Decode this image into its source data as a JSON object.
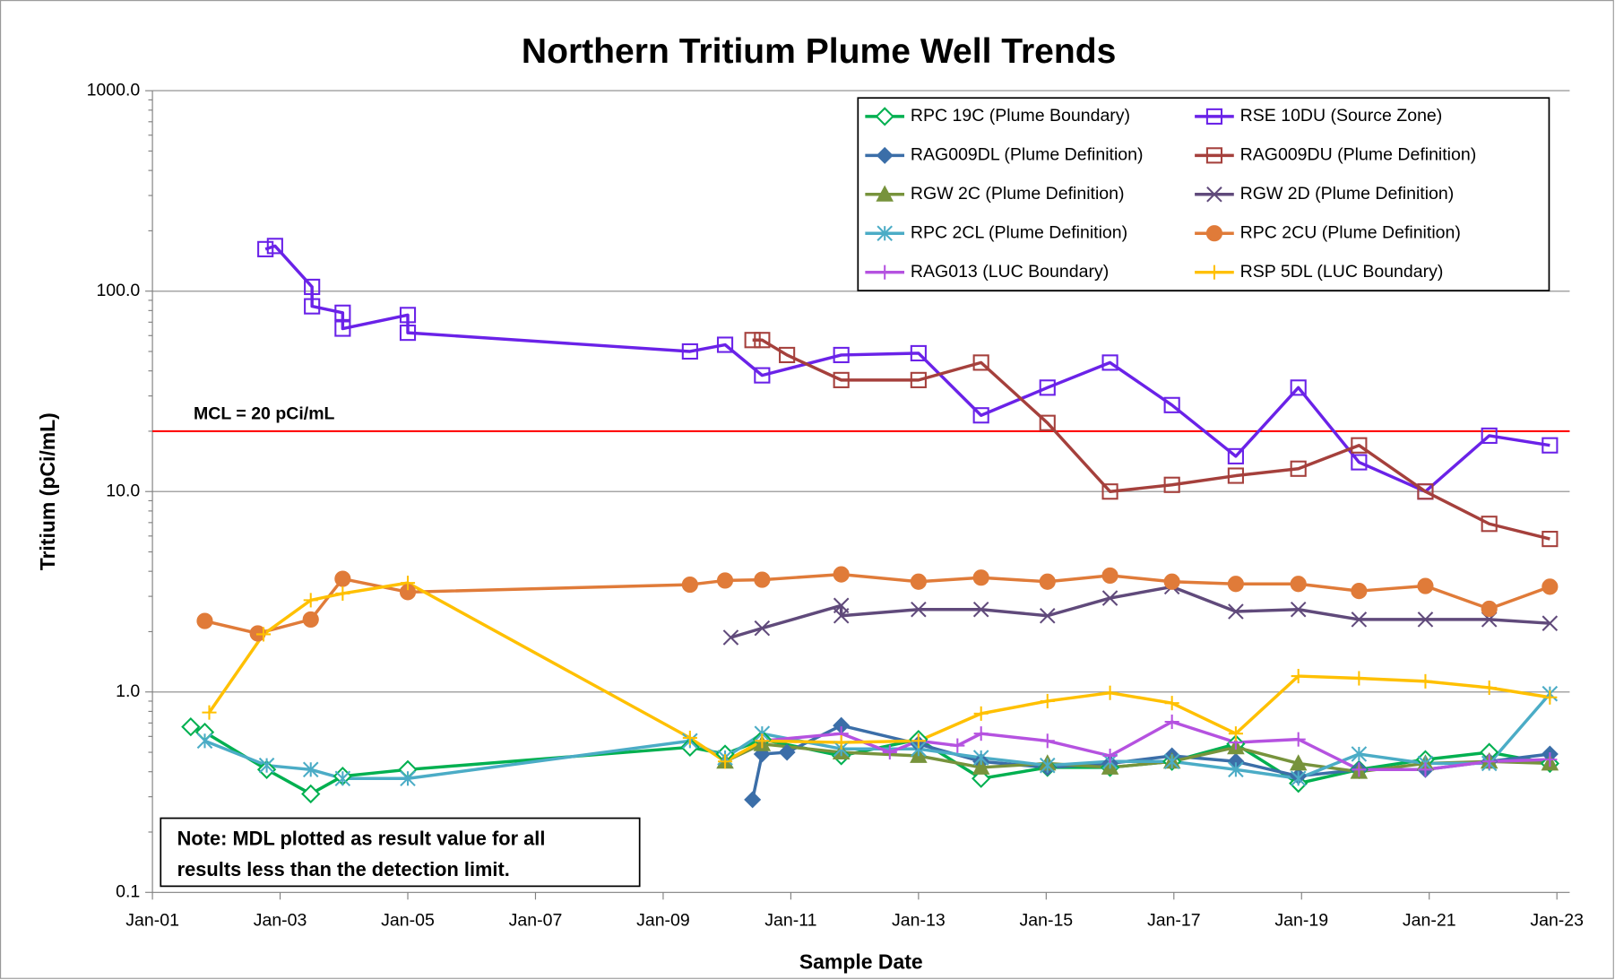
{
  "chart_data": {
    "type": "line",
    "title": "Northern Tritium Plume Well Trends",
    "x_label": "Sample Date",
    "y_label": "Tritium  (pCi/mL)",
    "log_y": true,
    "grid": true,
    "legend": "upper right",
    "xlim": [
      2001,
      2023.2
    ],
    "xticks": [
      {
        "value": 2001,
        "label": "Jan-01"
      },
      {
        "value": 2003,
        "label": "Jan-03"
      },
      {
        "value": 2005,
        "label": "Jan-05"
      },
      {
        "value": 2007,
        "label": "Jan-07"
      },
      {
        "value": 2009,
        "label": "Jan-09"
      },
      {
        "value": 2011,
        "label": "Jan-11"
      },
      {
        "value": 2013,
        "label": "Jan-13"
      },
      {
        "value": 2015,
        "label": "Jan-15"
      },
      {
        "value": 2017,
        "label": "Jan-17"
      },
      {
        "value": 2019,
        "label": "Jan-19"
      },
      {
        "value": 2021,
        "label": "Jan-21"
      },
      {
        "value": 2023,
        "label": "Jan-23"
      }
    ],
    "ylim": [
      0.1,
      1000
    ],
    "yticks": [
      0.1,
      {
        "value": 1,
        "label": "1.0"
      },
      {
        "value": 10,
        "label": "10.0"
      },
      {
        "value": 100,
        "label": "100.0"
      },
      {
        "value": 1000,
        "label": "1000.0"
      }
    ],
    "reference_line": {
      "value": 20,
      "label": "MCL = 20 pCi/mL",
      "color": "#ff0000"
    },
    "note": [
      "Note:  MDL plotted as result value for all",
      "results less than the detection limit."
    ],
    "series": [
      {
        "name": "RPC 19C (Plume Boundary)",
        "color": "#00b050",
        "marker": "diamond-open",
        "x": [
          2001.6,
          2001.82,
          2002.79,
          2003.48,
          2003.98,
          2005.0,
          2009.42,
          2009.97,
          2010.55,
          2011.79,
          2013.0,
          2013.98,
          2015.02,
          2016.0,
          2016.97,
          2017.97,
          2018.95,
          2019.9,
          2020.94,
          2021.94,
          2022.89
        ],
        "values": [
          0.67,
          0.63,
          0.41,
          0.31,
          0.38,
          0.41,
          0.53,
          0.49,
          0.58,
          0.48,
          0.58,
          0.37,
          0.42,
          0.42,
          0.45,
          0.55,
          0.35,
          0.41,
          0.46,
          0.5,
          0.44
        ]
      },
      {
        "name": "RSE 10DU (Source Zone)",
        "color": "#6a22e8",
        "marker": "square-open",
        "x": [
          2002.77,
          2002.92,
          2003.5,
          2003.5,
          2003.98,
          2003.98,
          2005.0,
          2005.0,
          2009.42,
          2009.97,
          2010.55,
          2011.79,
          2013.0,
          2013.98,
          2015.02,
          2016.0,
          2016.97,
          2017.97,
          2018.95,
          2019.9,
          2020.94,
          2021.94,
          2022.89
        ],
        "values": [
          162,
          168,
          105,
          84,
          78,
          65,
          76,
          62,
          50,
          54,
          38,
          48,
          49,
          24,
          33,
          44,
          27,
          15,
          33,
          14,
          10,
          19,
          17
        ]
      },
      {
        "name": "RAG009DL (Plume Definition)",
        "color": "#3b6ea8",
        "marker": "diamond-filled",
        "x": [
          2010.4,
          2010.55,
          2010.94,
          2011.79,
          2013.0,
          2013.98,
          2015.02,
          2016.0,
          2016.97,
          2017.97,
          2018.95,
          2019.9,
          2020.94,
          2021.94,
          2022.89
        ],
        "values": [
          0.29,
          0.49,
          0.5,
          0.68,
          0.55,
          0.45,
          0.42,
          0.44,
          0.48,
          0.45,
          0.38,
          0.41,
          0.41,
          0.45,
          0.49
        ]
      },
      {
        "name": "RAG009DU (Plume Definition)",
        "color": "#a5403c",
        "marker": "square-open",
        "x": [
          2010.4,
          2010.55,
          2010.94,
          2011.79,
          2013.0,
          2013.98,
          2015.02,
          2016.0,
          2016.97,
          2017.97,
          2018.95,
          2019.9,
          2020.94,
          2021.94,
          2022.89
        ],
        "values": [
          57,
          57,
          48,
          36,
          36,
          44,
          22,
          10,
          10.8,
          12,
          13,
          17,
          10,
          6.9,
          5.8
        ]
      },
      {
        "name": "RGW 2C (Plume Definition)",
        "color": "#77933c",
        "marker": "triangle",
        "x": [
          2009.97,
          2010.55,
          2011.79,
          2013.0,
          2013.98,
          2015.02,
          2016.0,
          2016.97,
          2017.97,
          2018.95,
          2019.9,
          2020.94,
          2021.94,
          2022.89
        ],
        "values": [
          0.45,
          0.55,
          0.5,
          0.48,
          0.42,
          0.44,
          0.42,
          0.45,
          0.53,
          0.44,
          0.4,
          0.44,
          0.45,
          0.44
        ]
      },
      {
        "name": "RGW 2D (Plume Definition)",
        "color": "#604a7b",
        "marker": "x",
        "x": [
          2010.06,
          2010.55,
          2011.79,
          2011.79,
          2013.0,
          2013.98,
          2015.02,
          2016.0,
          2016.97,
          2017.97,
          2018.95,
          2019.9,
          2020.94,
          2021.94,
          2022.89
        ],
        "values": [
          1.87,
          2.08,
          2.7,
          2.4,
          2.58,
          2.58,
          2.4,
          2.94,
          3.35,
          2.52,
          2.58,
          2.3,
          2.3,
          2.3,
          2.2
        ]
      },
      {
        "name": "RPC 2CL (Plume Definition)",
        "color": "#4bacc6",
        "marker": "asterisk",
        "x": [
          2001.82,
          2002.79,
          2003.48,
          2003.98,
          2005.0,
          2009.42,
          2009.97,
          2010.55,
          2011.79,
          2013.0,
          2013.98,
          2015.02,
          2016.0,
          2016.97,
          2017.97,
          2018.95,
          2019.9,
          2020.94,
          2021.94,
          2022.89
        ],
        "values": [
          0.57,
          0.43,
          0.41,
          0.37,
          0.37,
          0.57,
          0.47,
          0.62,
          0.52,
          0.52,
          0.47,
          0.43,
          0.45,
          0.45,
          0.41,
          0.37,
          0.49,
          0.44,
          0.44,
          0.98
        ]
      },
      {
        "name": "RPC 2CU (Plume Definition)",
        "color": "#e07b39",
        "marker": "circle",
        "x": [
          2001.82,
          2002.65,
          2003.48,
          2003.98,
          2005.0,
          2009.42,
          2009.97,
          2010.55,
          2011.79,
          2013.0,
          2013.98,
          2015.02,
          2016.0,
          2016.97,
          2017.97,
          2018.95,
          2019.9,
          2020.94,
          2021.94,
          2022.89
        ],
        "values": [
          2.26,
          1.96,
          2.3,
          3.67,
          3.15,
          3.43,
          3.6,
          3.63,
          3.86,
          3.55,
          3.72,
          3.55,
          3.81,
          3.55,
          3.46,
          3.46,
          3.19,
          3.38,
          2.6,
          3.35
        ]
      },
      {
        "name": "RAG013 (LUC Boundary)",
        "color": "#b552e0",
        "marker": "plus",
        "x": [
          2010.55,
          2011.79,
          2012.55,
          2013.0,
          2013.61,
          2013.98,
          2015.02,
          2016.0,
          2016.97,
          2017.97,
          2018.95,
          2019.9,
          2020.94,
          2021.94,
          2022.89
        ],
        "values": [
          0.57,
          0.62,
          0.5,
          0.57,
          0.54,
          0.62,
          0.57,
          0.48,
          0.71,
          0.56,
          0.58,
          0.41,
          0.41,
          0.45,
          0.46
        ]
      },
      {
        "name": "RSP 5DL (LUC Boundary)",
        "color": "#ffc000",
        "marker": "plus",
        "x": [
          2001.89,
          2002.74,
          2003.48,
          2003.98,
          2005.0,
          2009.42,
          2009.97,
          2010.55,
          2011.79,
          2013.0,
          2013.98,
          2015.02,
          2016.0,
          2016.97,
          2017.97,
          2018.95,
          2019.9,
          2020.94,
          2021.94,
          2022.89
        ],
        "values": [
          0.79,
          1.94,
          2.87,
          3.1,
          3.5,
          0.59,
          0.45,
          0.57,
          0.56,
          0.57,
          0.78,
          0.9,
          0.99,
          0.88,
          0.62,
          1.2,
          1.17,
          1.13,
          1.05,
          0.94
        ]
      }
    ]
  }
}
